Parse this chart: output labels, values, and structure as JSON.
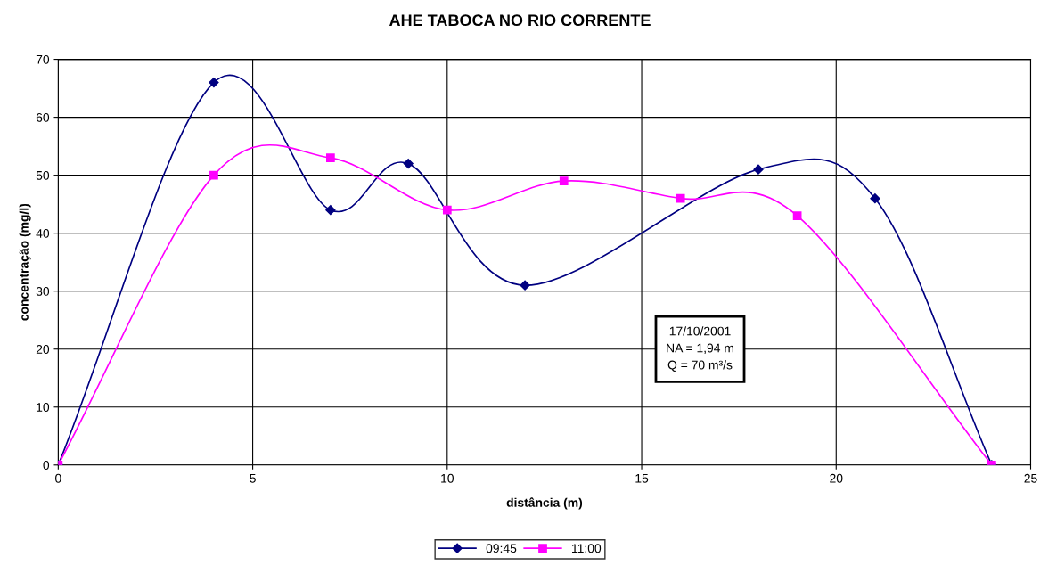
{
  "chart_data": {
    "type": "line",
    "title": "AHE TABOCA NO RIO CORRENTE",
    "xlabel": "distância (m)",
    "ylabel": "concentração (mg/l)",
    "series": [
      {
        "name": "09:45",
        "color": "#000080",
        "marker": "diamond",
        "x": [
          0,
          4,
          7,
          9,
          12,
          18,
          21,
          24
        ],
        "values": [
          0,
          66,
          44,
          52,
          31,
          51,
          46,
          0
        ]
      },
      {
        "name": "11:00",
        "color": "#ff00ff",
        "marker": "square",
        "x": [
          0,
          4,
          7,
          10,
          13,
          16,
          19,
          24
        ],
        "values": [
          0,
          50,
          53,
          44,
          49,
          46,
          43,
          0
        ]
      }
    ],
    "xlim": [
      0,
      25
    ],
    "xticks": [
      0,
      5,
      10,
      15,
      20,
      25
    ],
    "ylim": [
      0,
      70
    ],
    "yticks": [
      0,
      10,
      20,
      30,
      40,
      50,
      60,
      70
    ],
    "grid": true,
    "legend": "bottom",
    "line_style": "solid",
    "annotations": [
      "17/10/2001\nNA = 1,94 m\nQ = 70 m³/s"
    ]
  }
}
